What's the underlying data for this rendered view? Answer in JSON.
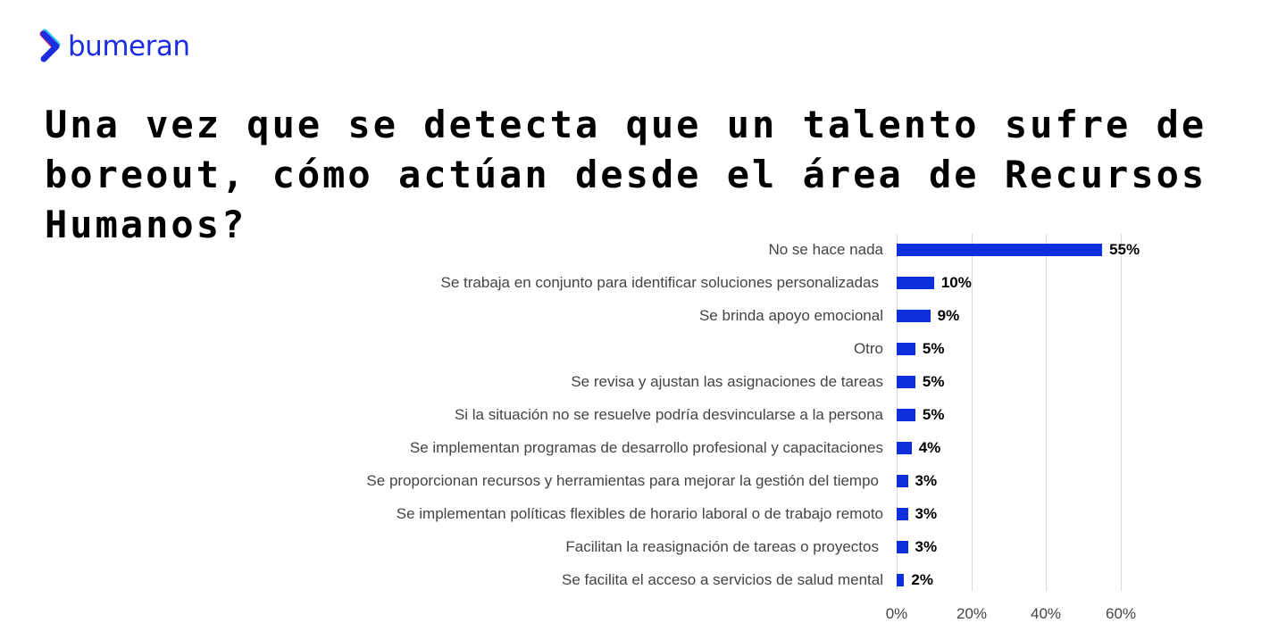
{
  "brand": {
    "name": "bumeran",
    "colors": {
      "primary": "#1c2ee0",
      "accent_pink": "#e0215f",
      "accent_cyan": "#38c6e8"
    }
  },
  "title": "Una vez que se detecta que un talento sufre de boreout, cómo actúan desde el área de Recursos Humanos?",
  "chart_data": {
    "type": "bar",
    "orientation": "horizontal",
    "title": "Una vez que se detecta que un talento sufre de boreout, cómo actúan desde el área de Recursos Humanos?",
    "xlabel": "",
    "ylabel": "",
    "categories": [
      "No se hace nada",
      "Se trabaja en conjunto para identificar soluciones personalizadas",
      "Se brinda apoyo emocional",
      "Otro",
      "Se revisa y ajustan las asignaciones de tareas",
      "Si la situación no se resuelve podría desvincularse a la persona",
      "Se implementan programas de desarrollo profesional y capacitaciones",
      "Se proporcionan recursos y herramientas para mejorar la gestión del tiempo",
      "Se implementan políticas flexibles de horario laboral o de trabajo remoto",
      "Facilitan la reasignación de tareas o proyectos",
      "Se facilita el acceso a servicios de salud mental"
    ],
    "values": [
      55,
      10,
      9,
      5,
      5,
      5,
      4,
      3,
      3,
      3,
      2
    ],
    "value_labels": [
      "55%",
      "10%",
      "9%",
      "5%",
      "5%",
      "5%",
      "4%",
      "3%",
      "3%",
      "3%",
      "2%"
    ],
    "xlim": [
      0,
      60
    ],
    "xticks": [
      "0%",
      "20%",
      "40%",
      "60%"
    ],
    "grid": true,
    "legend": null,
    "bar_color": "#0c2fdb"
  }
}
